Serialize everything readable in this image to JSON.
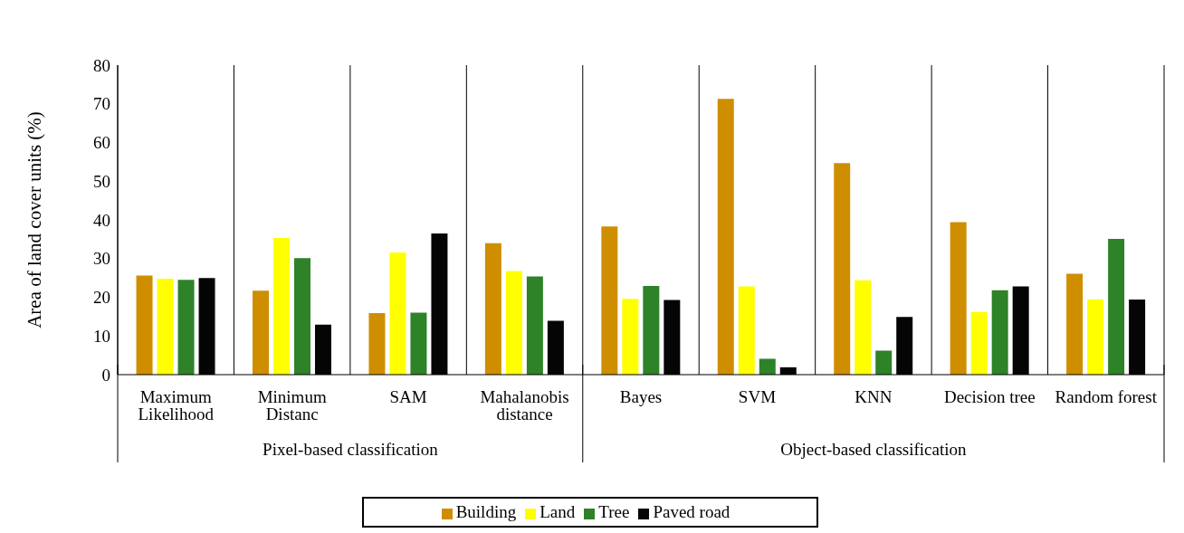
{
  "chart_data": {
    "type": "bar",
    "ylabel": "Area of land cover units (%)",
    "categories": [
      "Maximum Likelihood",
      "Minimum Distanc",
      "SAM",
      "Mahalanobis distance",
      "Bayes",
      "SVM",
      "KNN",
      "Decision tree",
      "Random forest"
    ],
    "series": [
      {
        "name": "Building",
        "color": "#cf8e00",
        "values": [
          25.6,
          21.7,
          15.9,
          34.0,
          38.3,
          71.3,
          54.7,
          39.4,
          26.1
        ]
      },
      {
        "name": "Land",
        "color": "#ffff00",
        "values": [
          24.8,
          35.3,
          31.6,
          26.8,
          19.6,
          22.8,
          24.4,
          16.2,
          19.5
        ]
      },
      {
        "name": "Tree",
        "color": "#2e8228",
        "values": [
          24.5,
          30.1,
          16.0,
          25.4,
          22.9,
          4.1,
          6.2,
          21.8,
          35.1
        ]
      },
      {
        "name": "Paved road",
        "color": "#050505",
        "values": [
          25.0,
          12.9,
          36.5,
          13.9,
          19.3,
          1.9,
          14.9,
          22.8,
          19.4
        ]
      }
    ],
    "ylim": [
      0,
      80
    ],
    "yticks": [
      0,
      10,
      20,
      30,
      40,
      50,
      60,
      70,
      80
    ],
    "grid": "x",
    "legend": "bottom",
    "annotations": [
      "Pixel-based classification",
      "Object-based classification"
    ]
  }
}
